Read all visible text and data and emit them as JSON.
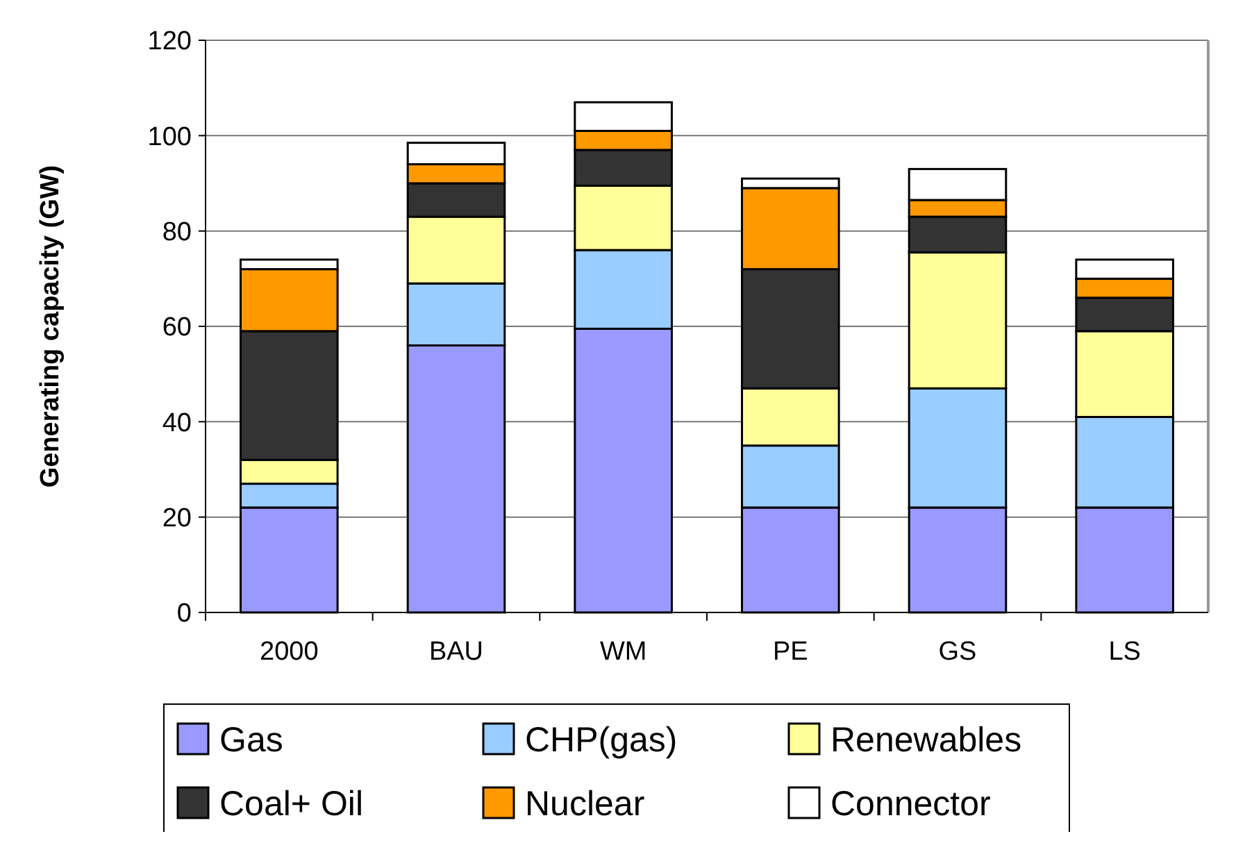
{
  "chart_data": {
    "type": "bar",
    "stacked": true,
    "ylabel": "Generating capacity (GW)",
    "categories": [
      "2000",
      "BAU",
      "WM",
      "PE",
      "GS",
      "LS"
    ],
    "series": [
      {
        "name": "Gas",
        "color": "#9999ff",
        "values": [
          22,
          56,
          59.5,
          22,
          22,
          22
        ]
      },
      {
        "name": "CHP(gas)",
        "color": "#99ccff",
        "values": [
          5,
          13,
          16.5,
          13,
          25,
          19
        ]
      },
      {
        "name": "Renewables",
        "color": "#ffff99",
        "values": [
          5,
          14,
          13.5,
          12,
          28.5,
          18
        ]
      },
      {
        "name": "Coal+ Oil",
        "color": "#333333",
        "values": [
          27,
          7,
          7.5,
          25,
          7.5,
          7
        ]
      },
      {
        "name": "Nuclear",
        "color": "#ff9900",
        "values": [
          13,
          4,
          4,
          17,
          3.5,
          4
        ]
      },
      {
        "name": "Connector",
        "color": "#ffffff",
        "values": [
          2,
          4.5,
          6,
          2,
          6.5,
          4
        ]
      }
    ],
    "ylim": [
      0,
      120
    ],
    "yticks": [
      0,
      20,
      40,
      60,
      80,
      100,
      120
    ],
    "grid": "y",
    "legend": "bottom"
  }
}
